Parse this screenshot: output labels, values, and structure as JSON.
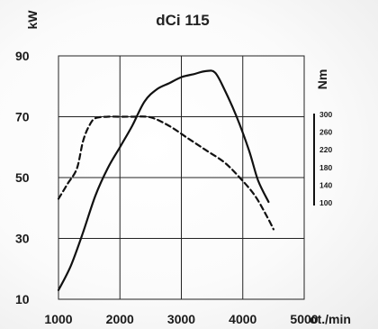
{
  "chart_data": {
    "type": "line",
    "title": "dCi 115",
    "xlabel": "ot./min",
    "ylabel": "kW",
    "y2label": "Nm",
    "xlim": [
      1000,
      5000
    ],
    "ylim": [
      10,
      90
    ],
    "x_ticks": [
      1000,
      2000,
      3000,
      4000,
      5000
    ],
    "y_ticks": [
      10,
      30,
      50,
      70,
      90
    ],
    "y2_ticks": [
      300,
      260,
      220,
      180,
      140,
      100
    ],
    "grid": true,
    "series": [
      {
        "line_style": "solid",
        "color": "#111111",
        "points": [
          [
            1000,
            13
          ],
          [
            1200,
            21
          ],
          [
            1400,
            32
          ],
          [
            1600,
            44
          ],
          [
            1800,
            53
          ],
          [
            2000,
            60
          ],
          [
            2200,
            67
          ],
          [
            2400,
            75
          ],
          [
            2600,
            79
          ],
          [
            2800,
            81
          ],
          [
            3000,
            83
          ],
          [
            3200,
            84
          ],
          [
            3400,
            85
          ],
          [
            3550,
            84.5
          ],
          [
            3700,
            79
          ],
          [
            3900,
            70
          ],
          [
            4100,
            59
          ],
          [
            4250,
            49
          ],
          [
            4420,
            42
          ]
        ]
      },
      {
        "line_style": "dashed",
        "color": "#111111",
        "points": [
          [
            1000,
            43
          ],
          [
            1150,
            48
          ],
          [
            1300,
            53
          ],
          [
            1400,
            62
          ],
          [
            1500,
            67
          ],
          [
            1600,
            69.5
          ],
          [
            1800,
            70
          ],
          [
            2000,
            70
          ],
          [
            2200,
            70
          ],
          [
            2500,
            69.8
          ],
          [
            2800,
            67
          ],
          [
            3100,
            63
          ],
          [
            3400,
            59
          ],
          [
            3700,
            55
          ],
          [
            3950,
            50
          ],
          [
            4200,
            44
          ],
          [
            4400,
            37
          ],
          [
            4500,
            33
          ]
        ]
      }
    ]
  }
}
